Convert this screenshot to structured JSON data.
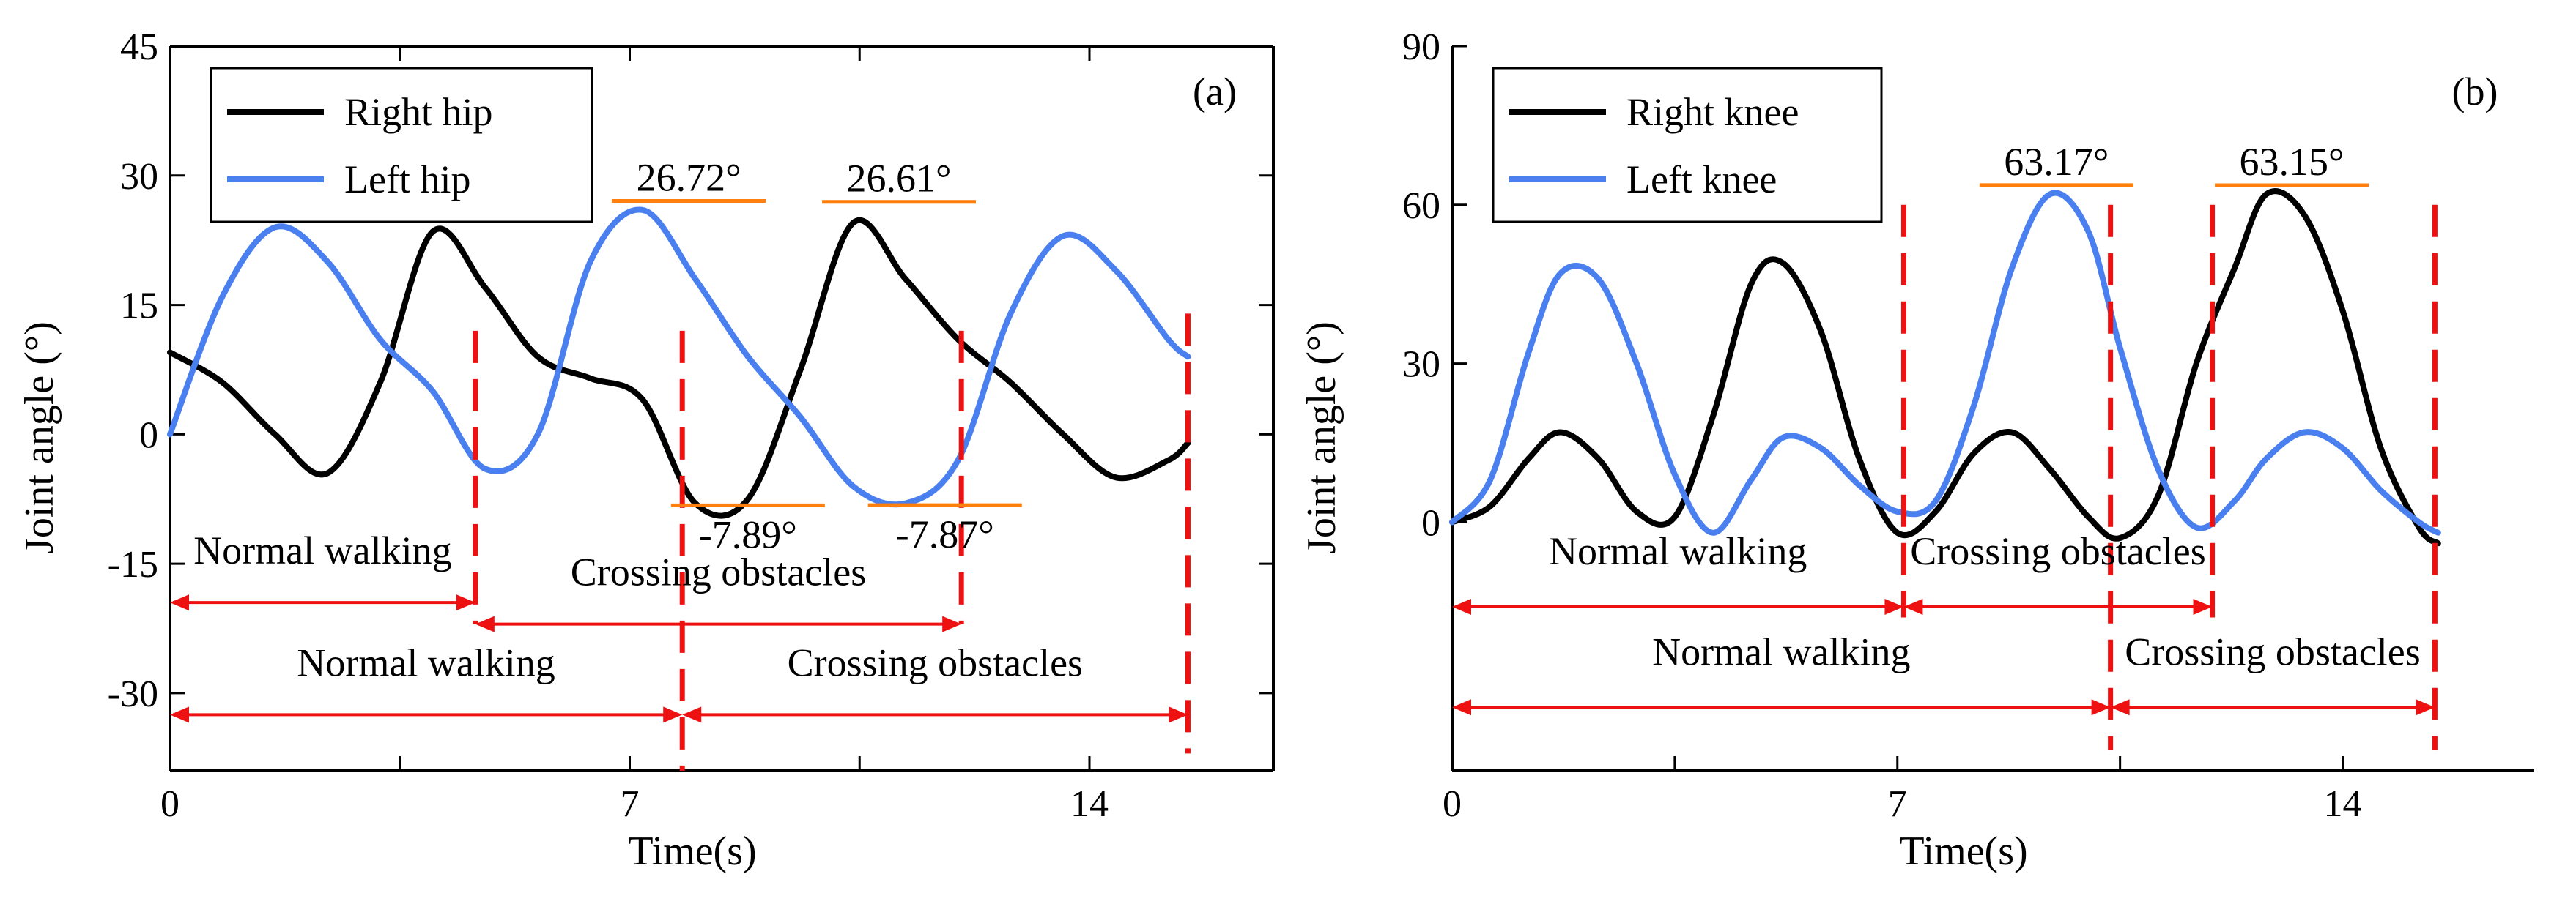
{
  "colors": {
    "right": "#000000",
    "left": "#4a7ff0",
    "marker": "#ff7f0e",
    "divider": "#ee1111",
    "segment": "#ee1111"
  },
  "chart_data": [
    {
      "type": "line",
      "panel_label": "(a)",
      "xlabel": "Time(s)",
      "ylabel": "Joint angle (°)",
      "xlim": [
        0,
        16.8
      ],
      "ylim": [
        -39,
        45
      ],
      "xticks": [
        0,
        3.5,
        7,
        10.5,
        14
      ],
      "xtick_labels": [
        "0",
        "",
        "7",
        "",
        "14"
      ],
      "yticks": [
        -30,
        -15,
        0,
        15,
        30,
        45
      ],
      "ytick_labels": [
        "-30",
        "-15",
        "0",
        "15",
        "30",
        "45"
      ],
      "legend": {
        "position": "top-left",
        "entries": [
          "Right hip",
          "Left hip"
        ]
      },
      "series": [
        {
          "name": "Right hip",
          "color_key": "right",
          "x": [
            0,
            0.8,
            1.6,
            2.4,
            3.2,
            4.0,
            4.8,
            5.6,
            6.4,
            7.2,
            8.0,
            8.8,
            9.6,
            10.4,
            11.2,
            12.0,
            12.8,
            13.6,
            14.4,
            15.2,
            15.5
          ],
          "y": [
            9.5,
            6,
            0,
            -4.5,
            6,
            23.5,
            17,
            9,
            6.5,
            4,
            -8,
            -7.5,
            7.5,
            24.5,
            18,
            11,
            6,
            0,
            -5,
            -3,
            -1
          ]
        },
        {
          "name": "Left hip",
          "color_key": "left",
          "x": [
            0,
            0.8,
            1.6,
            2.4,
            3.2,
            4.0,
            4.8,
            5.6,
            6.4,
            7.2,
            8.0,
            8.8,
            9.6,
            10.4,
            11.2,
            12.0,
            12.8,
            13.6,
            14.4,
            15.2,
            15.5
          ],
          "y": [
            0,
            16,
            24,
            20,
            11,
            5,
            -4,
            0,
            20,
            26,
            18,
            9,
            2,
            -6,
            -8,
            -3,
            14,
            23,
            19,
            11,
            9
          ]
        }
      ],
      "peak_annotations": [
        {
          "label": "26.72°",
          "x": 7.9,
          "y": 26.72,
          "position": "above"
        },
        {
          "label": "26.61°",
          "x": 11.1,
          "y": 26.61,
          "position": "above"
        },
        {
          "label": "-7.89°",
          "x": 8.8,
          "y": -7.89,
          "position": "below"
        },
        {
          "label": "-7.87°",
          "x": 11.8,
          "y": -7.87,
          "position": "below"
        }
      ],
      "dividers": [
        {
          "x": 4.65,
          "y_top": 12,
          "y_bottom": -22
        },
        {
          "x": 7.8,
          "y_top": 12,
          "y_bottom": -39
        },
        {
          "x": 12.05,
          "y_top": 12,
          "y_bottom": -22
        },
        {
          "x": 15.5,
          "y_top": 14,
          "y_bottom": -37
        }
      ],
      "segments": [
        {
          "label": "Normal walking",
          "x1": 0,
          "x2": 4.65,
          "y": -19.5,
          "label_y": -15
        },
        {
          "label": "Crossing obstacles",
          "x1": 4.65,
          "x2": 12.05,
          "y": -22,
          "label_y": -17.5
        },
        {
          "label": "Normal walking",
          "x1": 0,
          "x2": 7.8,
          "y": -32.5,
          "label_y": -28
        },
        {
          "label": "Crossing obstacles",
          "x1": 7.8,
          "x2": 15.5,
          "y": -32.5,
          "label_y": -28
        }
      ]
    },
    {
      "type": "line",
      "panel_label": "(b)",
      "xlabel": "Time(s)",
      "ylabel": "Joint angle (°)",
      "xlim": [
        0,
        17
      ],
      "ylim": [
        -47,
        90
      ],
      "xticks": [
        0,
        3.5,
        7,
        10.5,
        14
      ],
      "xtick_labels": [
        "0",
        "",
        "7",
        "",
        "14"
      ],
      "yticks": [
        0,
        30,
        60,
        90
      ],
      "ytick_labels": [
        "0",
        "30",
        "60",
        "90"
      ],
      "legend": {
        "position": "top-left",
        "entries": [
          "Right knee",
          "Left knee"
        ]
      },
      "series": [
        {
          "name": "Right knee",
          "color_key": "right",
          "x": [
            0,
            0.6,
            1.2,
            1.7,
            2.3,
            2.9,
            3.5,
            4.1,
            4.7,
            5.2,
            5.8,
            6.4,
            7.0,
            7.6,
            8.2,
            8.8,
            9.4,
            10.0,
            10.5,
            11.1,
            11.7,
            12.3,
            12.8,
            13.4,
            14.0,
            14.6,
            15.2,
            15.5
          ],
          "y": [
            0,
            3,
            12,
            17,
            12,
            2,
            1,
            20,
            45,
            49,
            36,
            12,
            -2,
            2,
            13,
            17,
            10,
            1,
            -3,
            5,
            30,
            48,
            62,
            58,
            40,
            14,
            -1,
            -4
          ]
        },
        {
          "name": "Left knee",
          "color_key": "left",
          "x": [
            0,
            0.6,
            1.2,
            1.7,
            2.3,
            2.9,
            3.5,
            4.1,
            4.7,
            5.2,
            5.8,
            6.4,
            7.0,
            7.6,
            8.2,
            8.8,
            9.4,
            10.0,
            10.5,
            11.1,
            11.7,
            12.3,
            12.8,
            13.4,
            14.0,
            14.6,
            15.2,
            15.5
          ],
          "y": [
            0,
            8,
            32,
            47,
            46,
            30,
            9,
            -2,
            8,
            16,
            14,
            7,
            2,
            4,
            22,
            48,
            62,
            55,
            33,
            10,
            -1,
            4,
            12,
            17,
            14,
            6,
            0,
            -2
          ]
        }
      ],
      "peak_annotations": [
        {
          "label": "63.17°",
          "x": 9.5,
          "y": 63.17,
          "position": "above"
        },
        {
          "label": "63.15°",
          "x": 13.2,
          "y": 63.15,
          "position": "above"
        }
      ],
      "dividers": [
        {
          "x": 7.1,
          "y_top": 60,
          "y_bottom": -18
        },
        {
          "x": 10.35,
          "y_top": 60,
          "y_bottom": -43
        },
        {
          "x": 11.95,
          "y_top": 60,
          "y_bottom": -18
        },
        {
          "x": 15.45,
          "y_top": 60,
          "y_bottom": -43
        }
      ],
      "segments": [
        {
          "label": "Normal walking",
          "x1": 0,
          "x2": 7.1,
          "y": -16,
          "label_y": -8
        },
        {
          "label": "Crossing obstacles",
          "x1": 7.1,
          "x2": 11.95,
          "y": -16,
          "label_y": -8
        },
        {
          "label": "Normal walking",
          "x1": 0,
          "x2": 10.35,
          "y": -35,
          "label_y": -27
        },
        {
          "label": "Crossing obstacles",
          "x1": 10.35,
          "x2": 15.45,
          "y": -35,
          "label_y": -27
        }
      ]
    }
  ]
}
